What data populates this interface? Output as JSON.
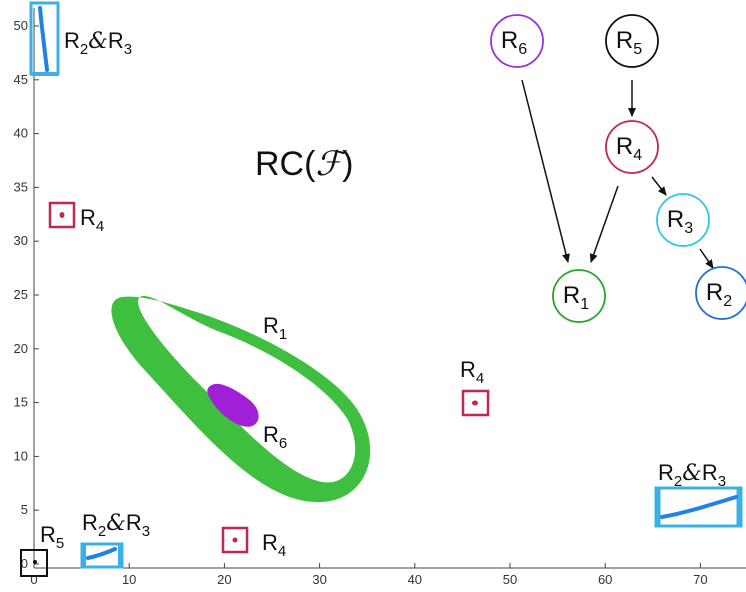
{
  "axes": {
    "x_ticks": [
      "0",
      "10",
      "20",
      "30",
      "40",
      "50",
      "60",
      "70"
    ],
    "y_ticks": [
      "0",
      "5",
      "10",
      "15",
      "20",
      "25",
      "30",
      "35",
      "40",
      "45",
      "50"
    ]
  },
  "title": {
    "prefix": "RC(",
    "symbol": "ℱ",
    "suffix": ")"
  },
  "region_labels": {
    "top_left_pair": {
      "base": "R",
      "sub1": "2",
      "amp": "&",
      "sub2": "3"
    },
    "left_r4": {
      "base": "R",
      "sub": "4"
    },
    "ring_r1": {
      "base": "R",
      "sub": "1"
    },
    "blob_r6": {
      "base": "R",
      "sub": "6"
    },
    "mid_r4": {
      "base": "R",
      "sub": "4"
    },
    "bottom_right_pair": {
      "base": "R",
      "sub1": "2",
      "amp": "&",
      "sub2": "3"
    },
    "bottom_left_pair": {
      "base": "R",
      "sub1": "2",
      "amp": "&",
      "sub2": "3"
    },
    "origin_r5": {
      "base": "R",
      "sub": "5"
    },
    "bottom_r4": {
      "base": "R",
      "sub": "4"
    }
  },
  "graph_nodes": [
    {
      "id": "R6",
      "base": "R",
      "sub": "6",
      "color": "#9b30d6"
    },
    {
      "id": "R5",
      "base": "R",
      "sub": "5",
      "color": "#111111"
    },
    {
      "id": "R4",
      "base": "R",
      "sub": "4",
      "color": "#c0294f"
    },
    {
      "id": "R3",
      "base": "R",
      "sub": "3",
      "color": "#2ec8e0"
    },
    {
      "id": "R1",
      "base": "R",
      "sub": "1",
      "color": "#2aa72a"
    },
    {
      "id": "R2",
      "base": "R",
      "sub": "2",
      "color": "#1f6fd6"
    }
  ],
  "graph_edges": [
    {
      "from": "R6",
      "to": "R1"
    },
    {
      "from": "R5",
      "to": "R4"
    },
    {
      "from": "R4",
      "to": "R1"
    },
    {
      "from": "R4",
      "to": "R3"
    },
    {
      "from": "R3",
      "to": "R2"
    }
  ],
  "colors": {
    "ring": "#3fbf3f",
    "blob": "#a020d8",
    "trajectory": "#1e82e6",
    "box_cyan": "#3ab0e6",
    "box_red": "#c0294f",
    "box_black": "#111111"
  }
}
